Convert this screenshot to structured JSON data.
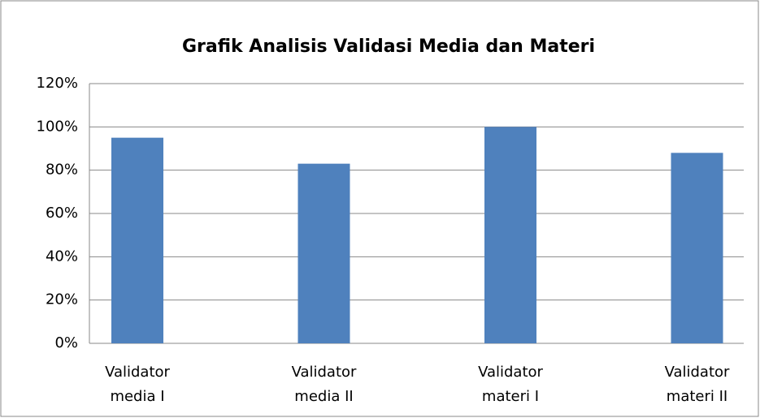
{
  "chart_data": {
    "type": "bar",
    "title": "Grafik Analisis Validasi Media dan Materi",
    "categories": [
      "Validator media I",
      "Validator media II",
      "Validator materi I",
      "Validator materi II"
    ],
    "values": [
      95,
      83,
      100,
      88
    ],
    "color": "#4f81bd",
    "ylim": [
      0,
      120
    ],
    "yticks": [
      {
        "value": 0,
        "label": "0%"
      },
      {
        "value": 20,
        "label": "20%"
      },
      {
        "value": 40,
        "label": "40%"
      },
      {
        "value": 60,
        "label": "60%"
      },
      {
        "value": 80,
        "label": "80%"
      },
      {
        "value": 100,
        "label": "100%"
      },
      {
        "value": 120,
        "label": "120%"
      }
    ],
    "grid": true
  }
}
